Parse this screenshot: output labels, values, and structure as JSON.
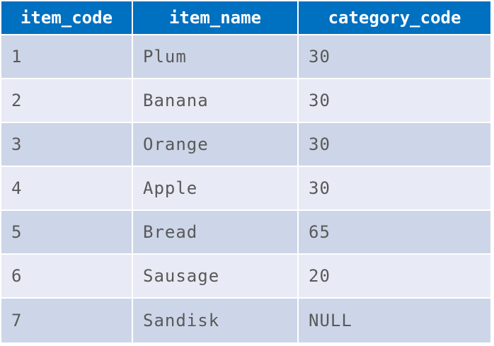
{
  "table": {
    "headers": [
      "item_code",
      "item_name",
      "category_code"
    ],
    "rows": [
      [
        "1",
        "Plum",
        "30"
      ],
      [
        "2",
        "Banana",
        "30"
      ],
      [
        "3",
        "Orange",
        "30"
      ],
      [
        "4",
        "Apple",
        "30"
      ],
      [
        "5",
        "Bread",
        "65"
      ],
      [
        "6",
        "Sausage",
        "20"
      ],
      [
        "7",
        "Sandisk",
        "NULL"
      ]
    ]
  },
  "colors": {
    "header_bg": "#0070c0",
    "header_text": "#ffffff",
    "row_odd_bg": "#cdd6e8",
    "row_even_bg": "#e8ebf5",
    "cell_text": "#595959"
  }
}
